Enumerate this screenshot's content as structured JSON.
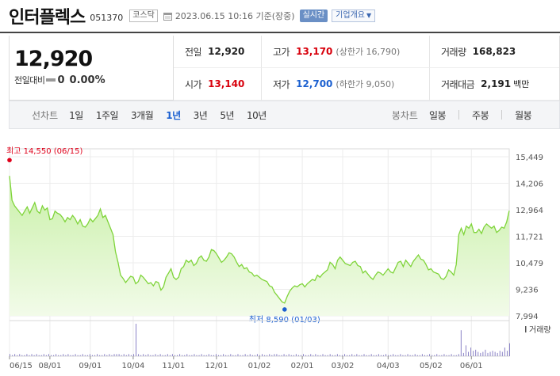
{
  "header": {
    "company": "인터플렉스",
    "code": "051370",
    "market": "코스닥",
    "datetime": "2023.06.15 10:16 기준(장중)",
    "realtime_label": "실시간",
    "company_info_label": "기업개요"
  },
  "quote": {
    "price": "12,920",
    "change_label": "전일대비",
    "change": "0",
    "change_rate": "0.00%"
  },
  "stats": {
    "prev_close_label": "전일",
    "prev_close": "12,920",
    "high_label": "고가",
    "high": "13,170",
    "upper_limit": "(상한가 16,790)",
    "volume_label": "거래량",
    "volume": "168,823",
    "open_label": "시가",
    "open": "13,140",
    "low_label": "저가",
    "low": "12,700",
    "lower_limit": "(하한가 9,050)",
    "amount_label": "거래대금",
    "amount": "2,191",
    "amount_unit": "백만"
  },
  "period_bar": {
    "line_label": "선차트",
    "line_options": [
      "1일",
      "1주일",
      "3개월",
      "1년",
      "3년",
      "5년",
      "10년"
    ],
    "active": "1년",
    "candle_label": "봉차트",
    "candle_options": [
      "일봉",
      "주봉",
      "월봉"
    ]
  },
  "chart_data": {
    "type": "area",
    "y_ticks": [
      "15,449",
      "14,206",
      "12,964",
      "11,721",
      "10,479",
      "9,236",
      "7,994"
    ],
    "y_values": [
      15449,
      14206,
      12964,
      11721,
      10479,
      9236,
      7994
    ],
    "x_ticks": [
      "06/15",
      "08/01",
      "09/01",
      "10/04",
      "11/01",
      "12/01",
      "01/02",
      "02/01",
      "03/02",
      "04/03",
      "05/02",
      "06/01"
    ],
    "ylim": [
      7994,
      15449
    ],
    "grid": true,
    "high_marker": {
      "label": "최고",
      "value": 14550,
      "value_text": "14,550",
      "date_text": "(06/15)"
    },
    "low_marker": {
      "label": "최저",
      "value": 8590,
      "value_text": "8,590",
      "date_text": "(01/03)"
    },
    "volume_label": "거래량",
    "colors": {
      "line": "#7fd43a",
      "fill_top": "#c9f0a8",
      "fill_bottom": "#f2fbe9",
      "high": "#e0001a",
      "low": "#1a5fd0",
      "volume": "#8a82c6"
    },
    "series": [
      {
        "values": [
          14550,
          13400,
          13150,
          13000,
          12850,
          12700,
          12900,
          13100,
          12800,
          13050,
          13300,
          12900,
          12800,
          13150,
          12950,
          13050,
          12500,
          12550,
          12900,
          12800,
          12750,
          12600,
          12400,
          12600,
          12500,
          12700,
          12550,
          12300,
          12500,
          12200,
          12150,
          12300,
          12550,
          12400,
          12550,
          12700,
          13000,
          12600,
          12700,
          12400,
          12100,
          11800,
          11000,
          10500,
          9900,
          9750,
          9550,
          9700,
          9850,
          9800,
          9500,
          9600,
          9900,
          9800,
          9650,
          9500,
          9550,
          9400,
          9600,
          9550,
          9200,
          9350,
          9800,
          10000,
          10200,
          9800,
          9700,
          9800,
          10200,
          10300,
          10600,
          10500,
          10600,
          10350,
          10450,
          10700,
          10800,
          10600,
          10550,
          10750,
          11100,
          11050,
          10900,
          10700,
          10500,
          10600,
          10750,
          10950,
          10900,
          10750,
          10500,
          10300,
          10400,
          10200,
          10250,
          10050,
          10000,
          9850,
          9900,
          9800,
          9700,
          9650,
          9600,
          9400,
          9350,
          9100,
          8950,
          8800,
          8650,
          8590,
          8900,
          9150,
          9300,
          9400,
          9350,
          9450,
          9500,
          9350,
          9500,
          9600,
          9700,
          9650,
          9900,
          9800,
          9950,
          10050,
          10150,
          10500,
          10400,
          10200,
          10600,
          10750,
          10600,
          10450,
          10400,
          10350,
          10500,
          10550,
          10350,
          10300,
          10000,
          10100,
          9950,
          9800,
          9700,
          9900,
          10050,
          10000,
          9900,
          10050,
          10200,
          10050,
          10000,
          10250,
          10500,
          10550,
          10300,
          10600,
          10450,
          10300,
          10550,
          10700,
          10850,
          10650,
          10600,
          10400,
          10150,
          10200,
          10050,
          10000,
          9950,
          9750,
          9700,
          9850,
          10150,
          10050,
          9900,
          10400,
          11800,
          12100,
          11800,
          12200,
          12100,
          12300,
          11900,
          11900,
          12050,
          11850,
          12150,
          12300,
          12200,
          12100,
          12200,
          11900,
          12000,
          12150,
          12100,
          12400,
          12920
        ]
      }
    ],
    "volume_values": [
      2,
      1,
      2,
      1,
      2,
      1,
      1,
      2,
      1,
      2,
      1,
      2,
      1,
      1,
      2,
      1,
      2,
      1,
      1,
      2,
      1,
      1,
      2,
      1,
      2,
      1,
      1,
      2,
      1,
      1,
      2,
      1,
      1,
      2,
      1,
      1,
      2,
      1,
      1,
      2,
      1,
      2,
      1,
      2,
      2,
      2,
      1,
      2,
      1,
      2,
      1,
      2,
      30,
      2,
      1,
      2,
      1,
      2,
      1,
      1,
      2,
      1,
      2,
      1,
      1,
      2,
      1,
      2,
      1,
      1,
      2,
      1,
      1,
      2,
      1,
      1,
      2,
      1,
      1,
      2,
      1,
      1,
      2,
      1,
      1,
      2,
      1,
      1,
      2,
      1,
      1,
      2,
      1,
      1,
      2,
      1,
      1,
      2,
      1,
      2,
      1,
      1,
      2,
      1,
      2,
      1,
      1,
      2,
      1,
      2,
      2,
      1,
      1,
      2,
      1,
      2,
      1,
      1,
      2,
      1,
      1,
      2,
      1,
      1,
      2,
      1,
      2,
      1,
      1,
      2,
      1,
      1,
      2,
      1,
      1,
      2,
      1,
      1,
      2,
      1,
      1,
      2,
      1,
      2,
      1,
      1,
      2,
      1,
      1,
      2,
      1,
      1,
      2,
      1,
      1,
      2,
      1,
      1,
      2,
      1,
      1,
      2,
      1,
      1,
      2,
      1,
      1,
      2,
      1,
      1,
      2,
      1,
      1,
      2,
      1,
      1,
      2,
      1,
      1,
      2,
      1,
      1,
      2,
      1,
      1,
      2,
      24,
      3,
      10,
      4,
      8,
      5,
      6,
      4,
      3,
      4,
      6,
      3,
      4,
      5,
      4,
      3,
      5,
      4,
      8,
      5,
      12
    ]
  }
}
